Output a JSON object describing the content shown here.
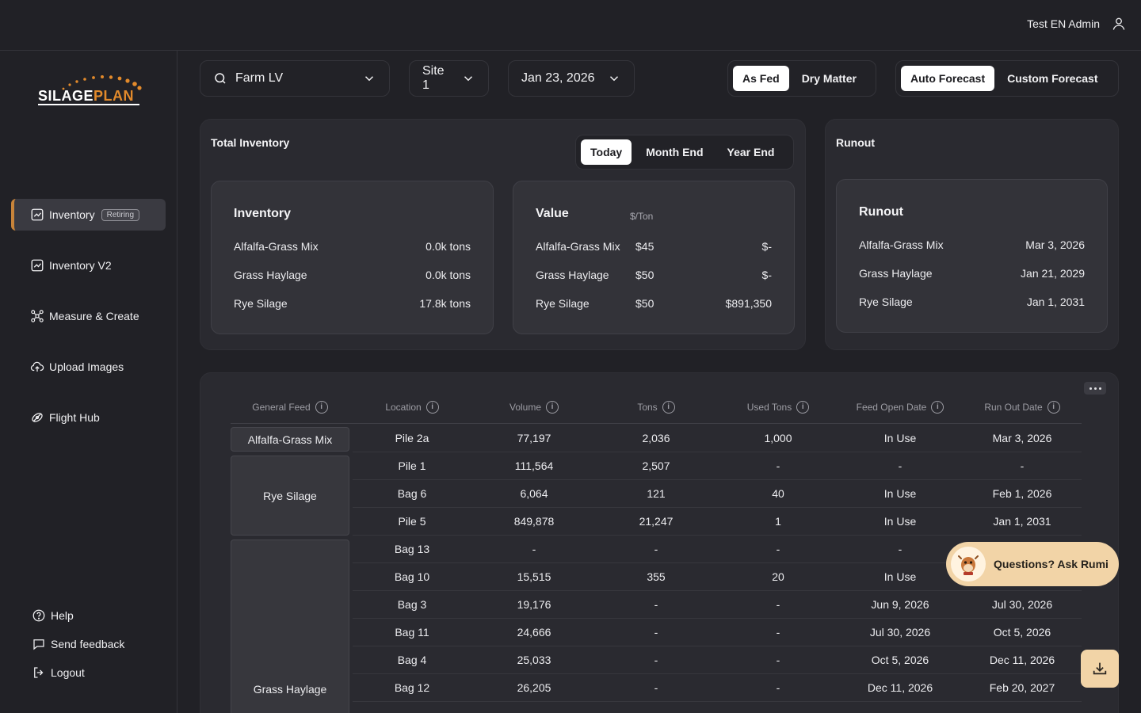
{
  "header": {
    "user_name": "Test EN Admin",
    "user_icon": "user-icon"
  },
  "logo": {
    "part1": "SILAGE",
    "part2": "PLAN"
  },
  "sidebar": {
    "items": [
      {
        "label": "Inventory",
        "badge": "Retiring",
        "icon": "chart-icon",
        "active": true
      },
      {
        "label": "Inventory V2",
        "icon": "chart-icon"
      },
      {
        "label": "Measure & Create",
        "icon": "drone-icon"
      },
      {
        "label": "Upload Images",
        "icon": "cloud-upload-icon"
      },
      {
        "label": "Flight Hub",
        "icon": "flight-icon"
      }
    ],
    "footer": [
      {
        "label": "Help",
        "icon": "help-icon"
      },
      {
        "label": "Send feedback",
        "icon": "feedback-icon"
      },
      {
        "label": "Logout",
        "icon": "logout-icon"
      }
    ]
  },
  "filters": {
    "farm": "Farm LV",
    "site": "Site 1",
    "date": "Jan 23, 2026",
    "basis": {
      "options": [
        "As Fed",
        "Dry Matter"
      ],
      "selected": "As Fed"
    },
    "forecast": {
      "options": [
        "Auto Forecast",
        "Custom Forecast"
      ],
      "selected": "Auto Forecast"
    }
  },
  "total_inventory": {
    "title": "Total Inventory",
    "periods": [
      "Today",
      "Month End",
      "Year End"
    ],
    "selected_period": "Today",
    "inventory": {
      "title": "Inventory",
      "rows": [
        {
          "feed": "Alfalfa-Grass Mix",
          "amount": "0.0k tons"
        },
        {
          "feed": "Grass Haylage",
          "amount": "0.0k tons"
        },
        {
          "feed": "Rye Silage",
          "amount": "17.8k tons"
        }
      ]
    },
    "value": {
      "title": "Value",
      "unit_hint": "$/Ton",
      "rows": [
        {
          "feed": "Alfalfa-Grass Mix",
          "price": "$45",
          "total": "$-"
        },
        {
          "feed": "Grass Haylage",
          "price": "$50",
          "total": "$-"
        },
        {
          "feed": "Rye Silage",
          "price": "$50",
          "total": "$891,350"
        }
      ]
    }
  },
  "runout": {
    "title": "Runout",
    "card_title": "Runout",
    "rows": [
      {
        "feed": "Alfalfa-Grass Mix",
        "date": "Mar 3, 2026"
      },
      {
        "feed": "Grass Haylage",
        "date": "Jan 21, 2029"
      },
      {
        "feed": "Rye Silage",
        "date": "Jan 1, 2031"
      }
    ]
  },
  "table": {
    "columns": [
      "General Feed",
      "Location",
      "Volume",
      "Tons",
      "Used Tons",
      "Feed Open Date",
      "Run Out Date"
    ],
    "groups": [
      {
        "feed": "Alfalfa-Grass Mix"
      },
      {
        "feed": "Rye Silage"
      },
      {
        "feed": "Grass Haylage"
      }
    ],
    "rows": [
      [
        "Pile 2a",
        "77,197",
        "2,036",
        "1,000",
        "In Use",
        "Mar 3, 2026"
      ],
      [
        "Pile 1",
        "111,564",
        "2,507",
        "-",
        "-",
        "-"
      ],
      [
        "Bag 6",
        "6,064",
        "121",
        "40",
        "In Use",
        "Feb 1, 2026"
      ],
      [
        "Pile 5",
        "849,878",
        "21,247",
        "1",
        "In Use",
        "Jan 1, 2031"
      ],
      [
        "Bag 13",
        "-",
        "-",
        "-",
        "-",
        ""
      ],
      [
        "Bag 10",
        "15,515",
        "355",
        "20",
        "In Use",
        ""
      ],
      [
        "Bag 3",
        "19,176",
        "-",
        "-",
        "Jun 9, 2026",
        "Jul 30, 2026"
      ],
      [
        "Bag 11",
        "24,666",
        "-",
        "-",
        "Jul 30, 2026",
        "Oct 5, 2026"
      ],
      [
        "Bag 4",
        "25,033",
        "-",
        "-",
        "Oct 5, 2026",
        "Dec 11, 2026"
      ],
      [
        "Bag 12",
        "26,205",
        "-",
        "-",
        "Dec 11, 2026",
        "Feb 20, 2027"
      ]
    ]
  },
  "assistant": {
    "label": "Questions? Ask Rumi",
    "icon": "rumi-avatar-icon"
  },
  "download": {
    "icon": "download-icon"
  },
  "colors": {
    "accent": "#c8843a",
    "cta_bg": "#f2d4a7",
    "bg": "#212126",
    "panel": "#2a2a30"
  }
}
